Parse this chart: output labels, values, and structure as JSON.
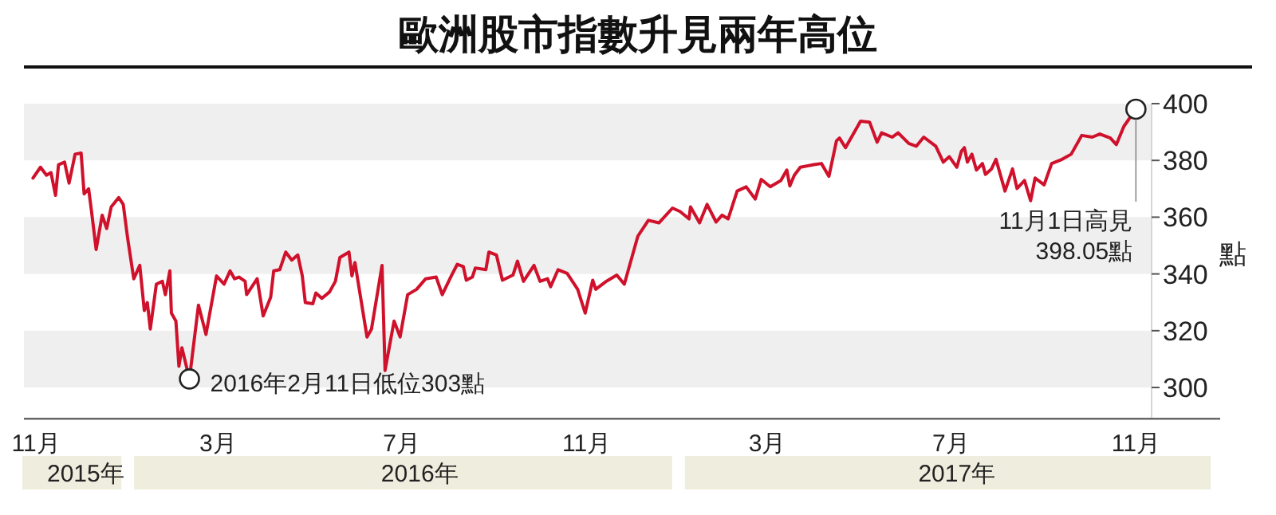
{
  "chart_data": {
    "type": "line",
    "title": "歐洲股市指數升見兩年高位",
    "ylabel": "點",
    "xlim": [
      "2015-10-24",
      "2017-12-27"
    ],
    "x2lim": [
      "2015-10-24",
      "2017-12-27"
    ],
    "x2ticks": [
      {
        "value": "2015-12-04",
        "label": "2015年"
      },
      {
        "value": "2016-07-13",
        "label": "2016年"
      },
      {
        "value": "2017-07-05",
        "label": "2017年"
      }
    ],
    "xticks": [
      {
        "value": "2015-11-01",
        "label": "11月"
      },
      {
        "value": "2016-03-01",
        "label": "3月"
      },
      {
        "value": "2016-07-01",
        "label": "7月"
      },
      {
        "value": "2016-11-01",
        "label": "11月"
      },
      {
        "value": "2017-03-01",
        "label": "3月"
      },
      {
        "value": "2017-07-01",
        "label": "7月"
      },
      {
        "value": "2017-11-01",
        "label": "11月"
      }
    ],
    "ylim": [
      289,
      400
    ],
    "yticks": [
      300,
      320,
      340,
      360,
      380,
      400
    ],
    "bands": [
      {
        "axis": "y",
        "from": 380,
        "to": 400,
        "color": "#efefef"
      },
      {
        "axis": "y",
        "from": 340,
        "to": 360,
        "color": "#efefef"
      },
      {
        "axis": "y",
        "from": 300,
        "to": 320,
        "color": "#efefef"
      }
    ],
    "marker": "none",
    "line_style": "solid",
    "annotations": [
      {
        "text": "2016年2月11日低位303點",
        "x": "2016-02-11",
        "y": 303
      },
      {
        "text": "11月1日高見\n398.05點",
        "x": "2017-11-01",
        "y": 398.05
      }
    ],
    "series": [
      {
        "color": "#d0112b",
        "x": [
          "2015-10-30",
          "2015-11-04",
          "2015-11-08",
          "2015-11-11",
          "2015-11-14",
          "2015-11-16",
          "2015-11-20",
          "2015-11-23",
          "2015-11-27",
          "2015-12-01",
          "2015-12-03",
          "2015-12-06",
          "2015-12-08",
          "2015-12-11",
          "2015-12-15",
          "2015-12-18",
          "2015-12-21",
          "2015-12-26",
          "2015-12-29",
          "2016-01-01",
          "2016-01-05",
          "2016-01-09",
          "2016-01-12",
          "2016-01-14",
          "2016-01-16",
          "2016-01-20",
          "2016-01-24",
          "2016-01-26",
          "2016-01-29",
          "2016-01-30",
          "2016-02-02",
          "2016-02-04",
          "2016-02-06",
          "2016-02-11",
          "2016-02-17",
          "2016-02-22",
          "2016-02-29",
          "2016-03-05",
          "2016-03-09",
          "2016-03-12",
          "2016-03-15",
          "2016-03-19",
          "2016-03-20",
          "2016-03-27",
          "2016-03-31",
          "2016-04-05",
          "2016-04-07",
          "2016-04-11",
          "2016-04-15",
          "2016-04-19",
          "2016-04-23",
          "2016-04-26",
          "2016-04-28",
          "2016-05-03",
          "2016-05-05",
          "2016-05-09",
          "2016-05-14",
          "2016-05-18",
          "2016-05-21",
          "2016-05-27",
          "2016-05-29",
          "2016-05-31",
          "2016-06-08",
          "2016-06-11",
          "2016-06-18",
          "2016-06-20",
          "2016-06-26",
          "2016-06-30",
          "2016-07-05",
          "2016-07-11",
          "2016-07-17",
          "2016-07-24",
          "2016-07-28",
          "2016-08-03",
          "2016-08-07",
          "2016-08-11",
          "2016-08-13",
          "2016-08-17",
          "2016-08-19",
          "2016-08-26",
          "2016-08-28",
          "2016-09-02",
          "2016-09-06",
          "2016-09-13",
          "2016-09-16",
          "2016-09-20",
          "2016-09-27",
          "2016-10-01",
          "2016-10-06",
          "2016-10-08",
          "2016-10-13",
          "2016-10-19",
          "2016-10-26",
          "2016-10-31",
          "2016-11-05",
          "2016-11-07",
          "2016-11-14",
          "2016-11-21",
          "2016-11-26",
          "2016-12-05",
          "2016-12-12",
          "2016-12-19",
          "2016-12-28",
          "2017-01-02",
          "2017-01-08",
          "2017-01-09",
          "2017-01-15",
          "2017-01-20",
          "2017-01-26",
          "2017-01-30",
          "2017-02-03",
          "2017-02-09",
          "2017-02-15",
          "2017-02-21",
          "2017-02-25",
          "2017-03-03",
          "2017-03-10",
          "2017-03-14",
          "2017-03-16",
          "2017-03-19",
          "2017-03-23",
          "2017-04-01",
          "2017-04-06",
          "2017-04-11",
          "2017-04-16",
          "2017-04-18",
          "2017-04-22",
          "2017-05-02",
          "2017-05-08",
          "2017-05-13",
          "2017-05-16",
          "2017-05-23",
          "2017-05-27",
          "2017-06-03",
          "2017-06-08",
          "2017-06-13",
          "2017-06-21",
          "2017-06-26",
          "2017-06-30",
          "2017-07-05",
          "2017-07-08",
          "2017-07-10",
          "2017-07-12",
          "2017-07-15",
          "2017-07-18",
          "2017-07-22",
          "2017-07-24",
          "2017-07-28",
          "2017-07-31",
          "2017-08-06",
          "2017-08-11",
          "2017-08-14",
          "2017-08-19",
          "2017-08-23",
          "2017-08-26",
          "2017-09-01",
          "2017-09-06",
          "2017-09-13",
          "2017-09-19",
          "2017-09-26",
          "2017-10-03",
          "2017-10-08",
          "2017-10-15",
          "2017-10-19",
          "2017-10-24",
          "2017-11-01"
        ],
        "values": [
          373.8,
          377.6,
          374.8,
          375.7,
          367.7,
          378.5,
          379.4,
          372,
          382.2,
          382.6,
          368.2,
          370,
          361.7,
          348.6,
          360.7,
          356,
          363.6,
          366.9,
          364.5,
          352.3,
          338.3,
          343,
          327.1,
          329.9,
          320.6,
          336.4,
          337.4,
          332.7,
          341.1,
          326.2,
          323.4,
          307.5,
          314,
          303,
          329,
          318.7,
          339.3,
          336.4,
          341.1,
          338.3,
          338.9,
          337.4,
          332.7,
          338.3,
          325.2,
          331.8,
          341.1,
          341.5,
          347.7,
          344.9,
          346.7,
          339.3,
          329.9,
          329.5,
          333.3,
          331.4,
          333.6,
          337.4,
          345.8,
          347.7,
          339.3,
          344,
          317.8,
          320.6,
          343,
          306,
          323.4,
          317.8,
          332.7,
          334.6,
          338.3,
          338.9,
          332.7,
          339.3,
          343.4,
          342.6,
          337.8,
          338.9,
          342.1,
          341.5,
          347.7,
          346.7,
          337.8,
          339.6,
          344.5,
          337.4,
          343,
          337.4,
          338.3,
          335.5,
          341.5,
          340.2,
          334.6,
          326.2,
          337.8,
          334.6,
          337.4,
          339.6,
          336.4,
          353.3,
          358.9,
          358,
          363.2,
          362,
          359.4,
          363.6,
          358,
          364.5,
          358.3,
          360.7,
          359.4,
          369.2,
          370.7,
          366.4,
          373.3,
          370.7,
          372.9,
          376.6,
          371,
          374.8,
          377.6,
          378.5,
          378.9,
          374.4,
          386.9,
          387.9,
          384.5,
          393.8,
          393.5,
          386.4,
          389.7,
          388.2,
          389.7,
          386,
          385,
          388.2,
          385,
          379.4,
          381.3,
          377.6,
          383.2,
          384.5,
          379.4,
          382.2,
          376.6,
          378.9,
          375.1,
          377,
          380.4,
          369.2,
          377,
          370.1,
          372.9,
          365.8,
          373.8,
          371.4,
          378.9,
          380.4,
          382.2,
          388.8,
          388.2,
          389.3,
          387.9,
          385.6,
          392,
          398.05
        ]
      }
    ]
  }
}
